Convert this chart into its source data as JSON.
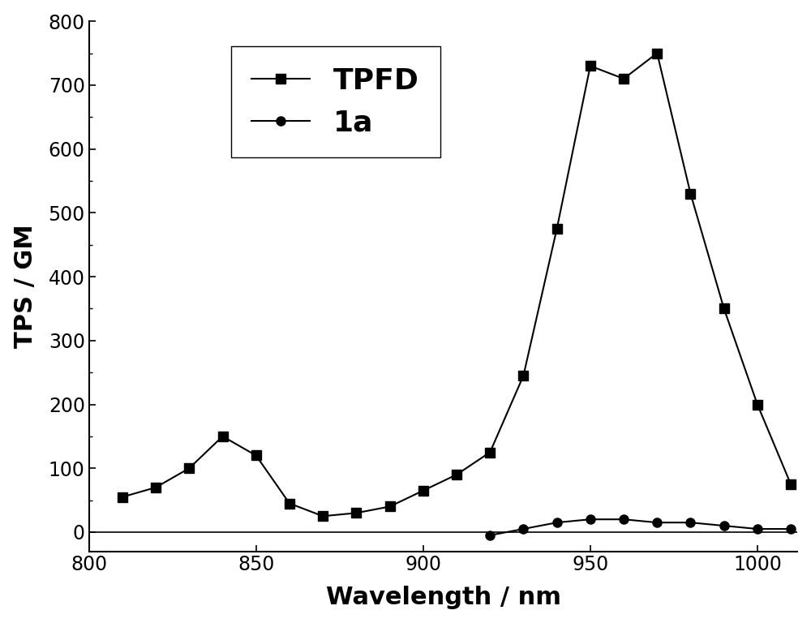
{
  "TPFD_x": [
    810,
    820,
    830,
    840,
    850,
    860,
    870,
    880,
    890,
    900,
    910,
    920,
    930,
    940,
    950,
    960,
    970,
    980,
    990,
    1000,
    1010
  ],
  "TPFD_y": [
    55,
    70,
    100,
    150,
    120,
    45,
    25,
    30,
    40,
    65,
    90,
    125,
    245,
    475,
    730,
    710,
    750,
    530,
    350,
    200,
    75
  ],
  "1a_x": [
    920,
    930,
    940,
    950,
    960,
    970,
    980,
    990,
    1000,
    1010
  ],
  "1a_y": [
    -5,
    5,
    15,
    20,
    20,
    15,
    15,
    10,
    5,
    5
  ],
  "xlabel": "Wavelength / nm",
  "ylabel": "TPS / GM",
  "xlim": [
    800,
    1012
  ],
  "ylim": [
    -30,
    800
  ],
  "yticks": [
    0,
    100,
    200,
    300,
    400,
    500,
    600,
    700,
    800
  ],
  "xticks": [
    800,
    850,
    900,
    950,
    1000
  ],
  "legend_labels": [
    "TPFD",
    "1a"
  ],
  "line_color": "#000000",
  "background_color": "#ffffff",
  "label_fontsize": 22,
  "tick_fontsize": 17,
  "legend_fontsize": 26,
  "marker_size_square": 9,
  "marker_size_circle": 8,
  "linewidth": 1.5
}
